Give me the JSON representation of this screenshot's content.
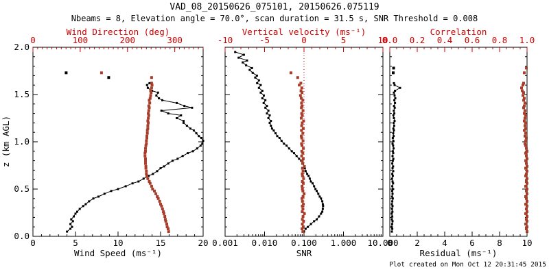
{
  "title": "VAD_08_20150626_075101, 20150626.075119",
  "subtitle": "Nbeams = 8, Elevation angle = 70.0°, scan duration = 31.5 s, SNR Threshold = 0.008",
  "footer": "Plot created on Mon Oct 12 20:31:45 2015",
  "colors": {
    "axis_black": "#000000",
    "axis_red": "#cc0000",
    "data_red": "#a83e2a"
  },
  "chart_data": [
    {
      "type": "scatter",
      "panel": "wind",
      "x_bottom": {
        "label": "Wind Speed (ms⁻¹)",
        "range": [
          0,
          20
        ],
        "log": false,
        "tickv": [
          0,
          5,
          10,
          15,
          20
        ],
        "tickl": [
          "0",
          "5",
          "10",
          "15",
          "20"
        ],
        "minor": 1,
        "color": "#000000"
      },
      "x_top": {
        "label": "Wind Direction (deg)",
        "range": [
          0,
          360
        ],
        "log": false,
        "tickv": [
          0,
          100,
          200,
          300
        ],
        "tickl": [
          "0",
          "100",
          "200",
          "300"
        ],
        "minor": 10,
        "color": "#cc0000"
      },
      "y": {
        "label": "z (km AGL)",
        "range": [
          0,
          2
        ],
        "tickv": [
          0,
          0.5,
          1,
          1.5,
          2
        ],
        "tickl": [
          "0.0",
          "0.5",
          "1.0",
          "1.5",
          "2.0"
        ],
        "minor": 0.1,
        "show_labels": true
      },
      "series": [
        {
          "name": "wind-speed-profile",
          "axis": "bottom",
          "color": "#000000",
          "line": true,
          "msize": 3,
          "z": [
            0.05,
            0.08,
            0.1,
            0.13,
            0.16,
            0.18,
            0.21,
            0.24,
            0.26,
            0.29,
            0.32,
            0.34,
            0.37,
            0.4,
            0.42,
            0.45,
            0.48,
            0.5,
            0.53,
            0.56,
            0.58,
            0.61,
            0.64,
            0.66,
            0.69,
            0.72,
            0.74,
            0.77,
            0.8,
            0.82,
            0.85,
            0.88,
            0.9,
            0.93,
            0.96,
            0.98,
            1.01,
            1.04,
            1.06,
            1.09,
            1.12,
            1.14,
            1.17,
            1.2,
            1.22,
            1.25,
            1.28,
            1.3,
            1.33,
            1.36,
            1.38,
            1.41,
            1.44,
            1.46,
            1.49,
            1.52,
            1.54,
            1.57,
            1.6,
            1.62
          ],
          "v": [
            4.0,
            4.4,
            4.6,
            4.4,
            4.7,
            4.5,
            4.8,
            5.0,
            5.2,
            5.5,
            5.9,
            6.2,
            6.6,
            7.1,
            7.7,
            8.4,
            9.2,
            10.0,
            10.9,
            11.7,
            12.4,
            13.0,
            13.6,
            14.1,
            14.6,
            15.0,
            15.4,
            15.9,
            16.4,
            17.0,
            17.6,
            18.2,
            18.8,
            19.3,
            19.7,
            19.9,
            20.0,
            19.8,
            19.5,
            19.2,
            18.9,
            18.5,
            18.1,
            17.7,
            17.7,
            16.9,
            17.4,
            15.9,
            15.1,
            18.7,
            17.8,
            16.9,
            15.2,
            14.8,
            14.5,
            14.7,
            14.0,
            13.5,
            13.4,
            13.7
          ]
        },
        {
          "name": "wind-speed-outliers",
          "axis": "bottom",
          "color": "#000000",
          "line": false,
          "msize": 4,
          "z": [
            1.68,
            1.73
          ],
          "v": [
            8.9,
            3.9
          ]
        },
        {
          "name": "wind-direction-profile",
          "axis": "top",
          "color": "#a83e2a",
          "line": false,
          "msize": 4,
          "z": [
            0.05,
            0.08,
            0.1,
            0.13,
            0.16,
            0.18,
            0.21,
            0.24,
            0.26,
            0.29,
            0.32,
            0.34,
            0.37,
            0.4,
            0.42,
            0.45,
            0.48,
            0.5,
            0.53,
            0.56,
            0.58,
            0.61,
            0.64,
            0.66,
            0.69,
            0.72,
            0.74,
            0.77,
            0.8,
            0.82,
            0.85,
            0.88,
            0.9,
            0.93,
            0.96,
            0.98,
            1.01,
            1.04,
            1.06,
            1.09,
            1.12,
            1.14,
            1.17,
            1.2,
            1.22,
            1.25,
            1.28,
            1.3,
            1.33,
            1.36,
            1.38,
            1.41,
            1.44,
            1.46,
            1.49,
            1.52,
            1.54,
            1.57,
            1.6,
            1.62
          ],
          "v": [
            287,
            286,
            284,
            283,
            281,
            280,
            279,
            277,
            276,
            274,
            272,
            270,
            268,
            265,
            263,
            260,
            257,
            253,
            251,
            248,
            246,
            243,
            241,
            240,
            240,
            239,
            239,
            238,
            238,
            238,
            237,
            237,
            238,
            238,
            239,
            240,
            240,
            241,
            241,
            242,
            242,
            243,
            243,
            244,
            243,
            244,
            245,
            244,
            245,
            246,
            245,
            247,
            246,
            248,
            249,
            250,
            249,
            251,
            252,
            251
          ]
        },
        {
          "name": "wind-direction-outliers",
          "axis": "top",
          "color": "#a83e2a",
          "line": false,
          "msize": 4,
          "z": [
            1.68,
            1.73
          ],
          "v": [
            251,
            145
          ]
        }
      ]
    },
    {
      "type": "scatter",
      "panel": "snr",
      "x_bottom": {
        "label": "SNR",
        "range": [
          0.001,
          10
        ],
        "log": true,
        "tickv": [
          0.001,
          0.01,
          0.1,
          1,
          10
        ],
        "tickl": [
          "0.001",
          "0.010",
          "0.100",
          "1.000",
          "10.000"
        ],
        "minor": 0,
        "color": "#000000"
      },
      "x_top": {
        "label": "Vertical velocity (ms⁻¹)",
        "range": [
          -10,
          10
        ],
        "log": false,
        "tickv": [
          -10,
          -5,
          0,
          5,
          10
        ],
        "tickl": [
          "-10",
          "-5",
          "0",
          "5",
          "10"
        ],
        "minor": 1,
        "color": "#cc0000"
      },
      "y": {
        "label": "",
        "range": [
          0,
          2
        ],
        "tickv": [
          0,
          0.5,
          1,
          1.5,
          2
        ],
        "tickl": [],
        "minor": 0.1,
        "show_labels": false
      },
      "zero_line": {
        "axis": "top",
        "value": 0,
        "color": "#cc0000",
        "style": "dotted"
      },
      "series": [
        {
          "name": "snr-profile",
          "axis": "bottom",
          "color": "#000000",
          "line": true,
          "msize": 3,
          "z": [
            0.05,
            0.08,
            0.1,
            0.13,
            0.16,
            0.18,
            0.21,
            0.24,
            0.26,
            0.29,
            0.32,
            0.34,
            0.37,
            0.4,
            0.42,
            0.45,
            0.48,
            0.5,
            0.53,
            0.56,
            0.58,
            0.61,
            0.64,
            0.66,
            0.69,
            0.72,
            0.74,
            0.77,
            0.8,
            0.82,
            0.85,
            0.88,
            0.9,
            0.93,
            0.96,
            0.98,
            1.01,
            1.04,
            1.06,
            1.09,
            1.12,
            1.14,
            1.17,
            1.2,
            1.22,
            1.25,
            1.28,
            1.3,
            1.33,
            1.36,
            1.38,
            1.41,
            1.44,
            1.46,
            1.49,
            1.52,
            1.54,
            1.57,
            1.6,
            1.62,
            1.65,
            1.68,
            1.7,
            1.73,
            1.76,
            1.78,
            1.81,
            1.84,
            1.86,
            1.89,
            1.92,
            1.95
          ],
          "v": [
            0.1,
            0.11,
            0.125,
            0.15,
            0.18,
            0.21,
            0.24,
            0.27,
            0.29,
            0.3,
            0.305,
            0.3,
            0.29,
            0.27,
            0.25,
            0.23,
            0.21,
            0.195,
            0.18,
            0.165,
            0.15,
            0.14,
            0.13,
            0.12,
            0.11,
            0.105,
            0.1,
            0.095,
            0.085,
            0.075,
            0.065,
            0.056,
            0.049,
            0.042,
            0.036,
            0.031,
            0.027,
            0.024,
            0.021,
            0.019,
            0.017,
            0.0155,
            0.0145,
            0.0135,
            0.0145,
            0.0125,
            0.0135,
            0.0115,
            0.0125,
            0.0105,
            0.0115,
            0.0095,
            0.0105,
            0.0088,
            0.0096,
            0.008,
            0.0088,
            0.0072,
            0.008,
            0.0065,
            0.0072,
            0.0058,
            0.0064,
            0.005,
            0.0042,
            0.0048,
            0.0034,
            0.0028,
            0.0036,
            0.0022,
            0.003,
            0.0018
          ]
        },
        {
          "name": "vertical-velocity-profile",
          "axis": "top",
          "color": "#a83e2a",
          "line": false,
          "msize": 4,
          "z": [
            0.05,
            0.08,
            0.1,
            0.13,
            0.16,
            0.18,
            0.21,
            0.24,
            0.26,
            0.29,
            0.32,
            0.34,
            0.37,
            0.4,
            0.42,
            0.45,
            0.48,
            0.5,
            0.53,
            0.56,
            0.58,
            0.61,
            0.64,
            0.66,
            0.69,
            0.72,
            0.74,
            0.77,
            0.8,
            0.82,
            0.85,
            0.88,
            0.9,
            0.93,
            0.96,
            0.98,
            1.01,
            1.04,
            1.06,
            1.09,
            1.12,
            1.14,
            1.17,
            1.2,
            1.22,
            1.25,
            1.28,
            1.3,
            1.33,
            1.36,
            1.38,
            1.41,
            1.44,
            1.46,
            1.49,
            1.52,
            1.54,
            1.57,
            1.6,
            1.62,
            1.68,
            1.73
          ],
          "v": [
            -0.15,
            -0.25,
            -0.1,
            -0.22,
            -0.05,
            -0.21,
            -0.12,
            0.05,
            -0.23,
            -0.14,
            -0.22,
            -0.08,
            -0.2,
            -0.25,
            -0.12,
            0.02,
            -0.15,
            -0.2,
            -0.24,
            -0.1,
            -0.21,
            -0.05,
            -0.19,
            -0.23,
            -0.12,
            -0.2,
            0.04,
            -0.18,
            -0.22,
            -0.1,
            -0.3,
            -0.15,
            -0.28,
            -0.08,
            -0.26,
            -0.31,
            -0.12,
            -0.29,
            -0.35,
            -0.15,
            -0.32,
            -0.1,
            -0.3,
            -0.23,
            -0.05,
            -0.35,
            -0.22,
            -0.3,
            -0.12,
            -0.33,
            -0.24,
            -0.31,
            -0.15,
            -0.35,
            -0.45,
            -0.25,
            -0.38,
            -0.28,
            -0.6,
            -0.4,
            -0.8,
            -1.65
          ]
        }
      ]
    },
    {
      "type": "scatter",
      "panel": "residual",
      "x_bottom": {
        "label": "Residual (ms⁻¹)",
        "range": [
          0,
          10
        ],
        "log": false,
        "tickv": [
          0,
          2,
          4,
          6,
          8,
          10
        ],
        "tickl": [
          "0",
          "2",
          "4",
          "6",
          "8",
          "10"
        ],
        "minor": 0.5,
        "color": "#000000"
      },
      "x_top": {
        "label": "Correlation",
        "range": [
          0,
          1
        ],
        "log": false,
        "tickv": [
          0,
          0.2,
          0.4,
          0.6,
          0.8,
          1.0
        ],
        "tickl": [
          "0.0",
          "0.2",
          "0.4",
          "0.6",
          "0.8",
          "1.0"
        ],
        "minor": 0.05,
        "color": "#cc0000"
      },
      "y": {
        "label": "",
        "range": [
          0,
          2
        ],
        "tickv": [
          0,
          0.5,
          1,
          1.5,
          2
        ],
        "tickl": [],
        "minor": 0.1,
        "show_labels": false
      },
      "series": [
        {
          "name": "residual-profile",
          "axis": "bottom",
          "color": "#000000",
          "line": true,
          "msize": 3,
          "z": [
            0.05,
            0.08,
            0.1,
            0.13,
            0.16,
            0.18,
            0.21,
            0.24,
            0.26,
            0.29,
            0.32,
            0.34,
            0.37,
            0.4,
            0.42,
            0.45,
            0.48,
            0.5,
            0.53,
            0.56,
            0.58,
            0.61,
            0.64,
            0.66,
            0.69,
            0.72,
            0.74,
            0.77,
            0.8,
            0.82,
            0.85,
            0.88,
            0.9,
            0.93,
            0.96,
            0.98,
            1.01,
            1.04,
            1.06,
            1.09,
            1.12,
            1.14,
            1.17,
            1.2,
            1.22,
            1.25,
            1.28,
            1.3,
            1.33,
            1.36,
            1.38,
            1.41,
            1.44,
            1.46,
            1.49,
            1.52,
            1.54,
            1.57,
            1.6,
            1.62
          ],
          "v": [
            0.15,
            0.18,
            0.14,
            0.17,
            0.2,
            0.15,
            0.18,
            0.14,
            0.19,
            0.16,
            0.2,
            0.15,
            0.18,
            0.22,
            0.16,
            0.2,
            0.17,
            0.22,
            0.18,
            0.24,
            0.2,
            0.16,
            0.22,
            0.18,
            0.25,
            0.2,
            0.24,
            0.18,
            0.22,
            0.26,
            0.2,
            0.25,
            0.22,
            0.28,
            0.24,
            0.2,
            0.26,
            0.22,
            0.28,
            0.25,
            0.3,
            0.26,
            0.32,
            0.28,
            0.35,
            0.3,
            0.26,
            0.33,
            0.29,
            0.36,
            0.31,
            0.38,
            0.33,
            0.4,
            0.35,
            0.3,
            0.38,
            0.75,
            0.35,
            0.3
          ]
        },
        {
          "name": "residual-outliers",
          "axis": "bottom",
          "color": "#000000",
          "line": false,
          "msize": 4,
          "z": [
            1.73,
            1.78
          ],
          "v": [
            0.25,
            0.28
          ]
        },
        {
          "name": "correlation-profile",
          "axis": "top",
          "color": "#a83e2a",
          "line": false,
          "msize": 4,
          "z": [
            0.05,
            0.08,
            0.1,
            0.13,
            0.16,
            0.18,
            0.21,
            0.24,
            0.26,
            0.29,
            0.32,
            0.34,
            0.37,
            0.4,
            0.42,
            0.45,
            0.48,
            0.5,
            0.53,
            0.56,
            0.58,
            0.61,
            0.64,
            0.66,
            0.69,
            0.72,
            0.74,
            0.77,
            0.8,
            0.82,
            0.85,
            0.88,
            0.9,
            0.93,
            0.96,
            0.98,
            1.01,
            1.04,
            1.06,
            1.09,
            1.12,
            1.14,
            1.17,
            1.2,
            1.22,
            1.25,
            1.28,
            1.3,
            1.33,
            1.36,
            1.38,
            1.41,
            1.44,
            1.46,
            1.49,
            1.52,
            1.54,
            1.57,
            1.6,
            1.62,
            1.73,
            1.78
          ],
          "v": [
            1.0,
            0.995,
            1.0,
            0.99,
            1.0,
            0.995,
            1.0,
            0.99,
            1.0,
            0.995,
            1.0,
            0.99,
            1.0,
            0.995,
            0.99,
            1.0,
            0.995,
            1.0,
            0.99,
            1.0,
            0.995,
            1.0,
            0.99,
            0.995,
            1.0,
            0.99,
            1.0,
            0.995,
            0.99,
            1.0,
            0.995,
            0.99,
            1.0,
            0.995,
            0.99,
            0.985,
            0.99,
            0.995,
            0.985,
            0.99,
            0.98,
            0.99,
            0.985,
            0.99,
            0.98,
            0.985,
            0.99,
            0.98,
            0.985,
            0.975,
            0.98,
            0.985,
            0.975,
            0.98,
            0.97,
            0.975,
            0.965,
            0.96,
            0.97,
            0.975,
            0.98,
            0.995
          ]
        }
      ]
    }
  ]
}
